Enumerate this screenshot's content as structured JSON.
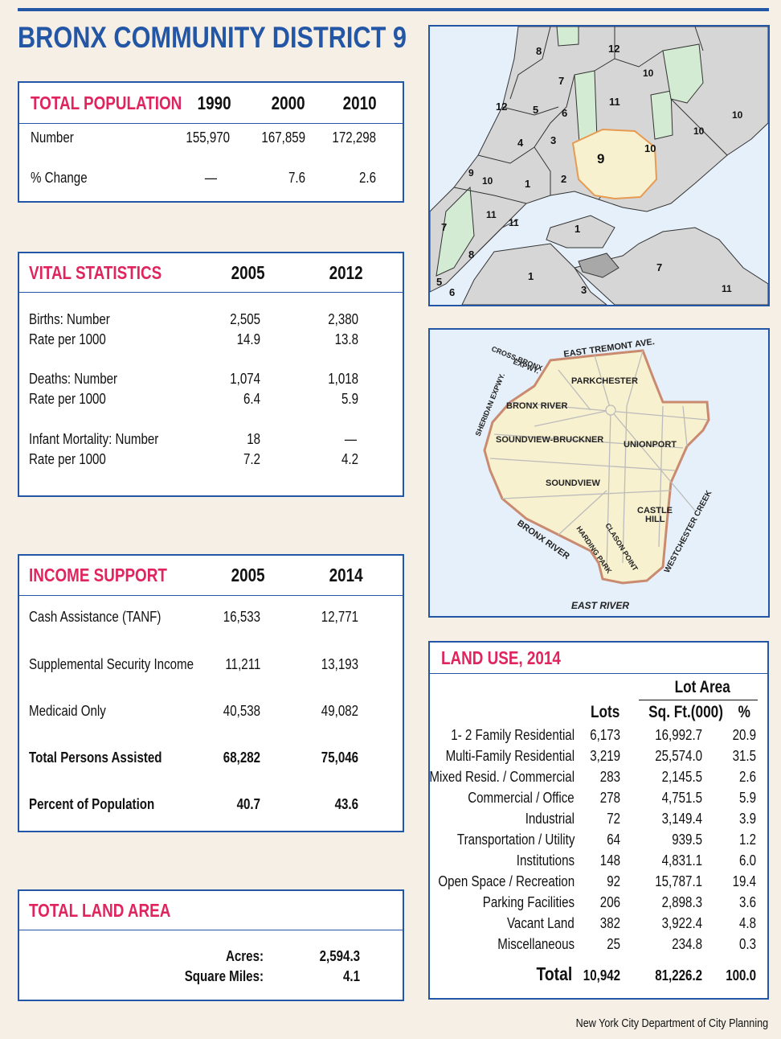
{
  "title": "BRONX COMMUNITY DISTRICT 9",
  "total_population": {
    "label": "TOTAL POPULATION",
    "years": [
      "1990",
      "2000",
      "2010"
    ],
    "rows": [
      {
        "label": "Number",
        "values": [
          "155,970",
          "167,859",
          "172,298"
        ]
      },
      {
        "label": "% Change",
        "values": [
          "—",
          "7.6",
          "2.6"
        ]
      }
    ]
  },
  "vital_statistics": {
    "label": "VITAL STATISTICS",
    "years": [
      "2005",
      "2012"
    ],
    "rows": [
      {
        "label": "Births: Number",
        "values": [
          "2,505",
          "2,380"
        ]
      },
      {
        "label": "Rate per 1000",
        "values": [
          "14.9",
          "13.8"
        ]
      },
      {
        "label": "Deaths: Number",
        "values": [
          "1,074",
          "1,018"
        ]
      },
      {
        "label": "Rate per 1000",
        "values": [
          "6.4",
          "5.9"
        ]
      },
      {
        "label": "Infant Mortality: Number",
        "values": [
          "18",
          "—"
        ]
      },
      {
        "label": "Rate per 1000",
        "values": [
          "7.2",
          "4.2"
        ]
      }
    ]
  },
  "income_support": {
    "label": "INCOME SUPPORT",
    "years": [
      "2005",
      "2014"
    ],
    "rows": [
      {
        "label": "Cash Assistance (TANF)",
        "values": [
          "16,533",
          "12,771"
        ]
      },
      {
        "label": "Supplemental Security Income",
        "values": [
          "11,211",
          "13,193"
        ]
      },
      {
        "label": "Medicaid Only",
        "values": [
          "40,538",
          "49,082"
        ]
      },
      {
        "label": "Total Persons Assisted",
        "values": [
          "68,282",
          "75,046"
        ]
      },
      {
        "label": "Percent of Population",
        "values": [
          "40.7",
          "43.6"
        ]
      }
    ]
  },
  "total_land_area": {
    "label": "TOTAL LAND AREA",
    "rows": [
      {
        "label": "Acres:",
        "value": "2,594.3"
      },
      {
        "label": "Square Miles:",
        "value": "4.1"
      }
    ]
  },
  "borough_map": {
    "labels": [
      "8",
      "12",
      "10",
      "7",
      "12",
      "5",
      "6",
      "11",
      "4",
      "3",
      "9",
      "10",
      "10",
      "10",
      "9",
      "10",
      "1",
      "2",
      "11",
      "11",
      "7",
      "1",
      "8",
      "1",
      "7",
      "5",
      "6",
      "3",
      "11"
    ]
  },
  "district_map": {
    "streets": [
      "EAST TREMONT AVE.",
      "CROSS-BRONX",
      "EXPWY.",
      "SHERIDAN EXPWY.",
      "BRONX RIVER",
      "EAST RIVER",
      "WESTCHESTER CREEK",
      "HARDING PARK",
      "CLASON POINT"
    ],
    "neighborhoods": [
      "PARKCHESTER",
      "BRONX RIVER",
      "SOUNDVIEW-BRUCKNER",
      "UNIONPORT",
      "SOUNDVIEW",
      "CASTLE",
      "HILL"
    ]
  },
  "land_use": {
    "label": "LAND USE, 2014",
    "lot_area_label": "Lot Area",
    "col_lots": "Lots",
    "col_sqft": "Sq. Ft.(000)",
    "col_pct": "%",
    "rows": [
      {
        "label": "1- 2 Family Residential",
        "lots": "6,173",
        "sqft": "16,992.7",
        "pct": "20.9"
      },
      {
        "label": "Multi-Family Residential",
        "lots": "3,219",
        "sqft": "25,574.0",
        "pct": "31.5"
      },
      {
        "label": "Mixed Resid. / Commercial",
        "lots": "283",
        "sqft": "2,145.5",
        "pct": "2.6"
      },
      {
        "label": "Commercial / Office",
        "lots": "278",
        "sqft": "4,751.5",
        "pct": "5.9"
      },
      {
        "label": "Industrial",
        "lots": "72",
        "sqft": "3,149.4",
        "pct": "3.9"
      },
      {
        "label": "Transportation / Utility",
        "lots": "64",
        "sqft": "939.5",
        "pct": "1.2"
      },
      {
        "label": "Institutions",
        "lots": "148",
        "sqft": "4,831.1",
        "pct": "6.0"
      },
      {
        "label": "Open Space / Recreation",
        "lots": "92",
        "sqft": "15,787.1",
        "pct": "19.4"
      },
      {
        "label": "Parking Facilities",
        "lots": "206",
        "sqft": "2,898.3",
        "pct": "3.6"
      },
      {
        "label": "Vacant Land",
        "lots": "382",
        "sqft": "3,922.4",
        "pct": "4.8"
      },
      {
        "label": "Miscellaneous",
        "lots": "25",
        "sqft": "234.8",
        "pct": "0.3"
      }
    ],
    "total": {
      "label": "Total",
      "lots": "10,942",
      "sqft": "81,226.2",
      "pct": "100.0"
    }
  },
  "credit": "New York City Department of City Planning",
  "colors": {
    "blue": "#2456a6",
    "pink": "#e0245e",
    "district": "#f8f1cf",
    "land": "#d6d6d6",
    "park": "#d3ebd3",
    "water": "#e6f0fa"
  }
}
